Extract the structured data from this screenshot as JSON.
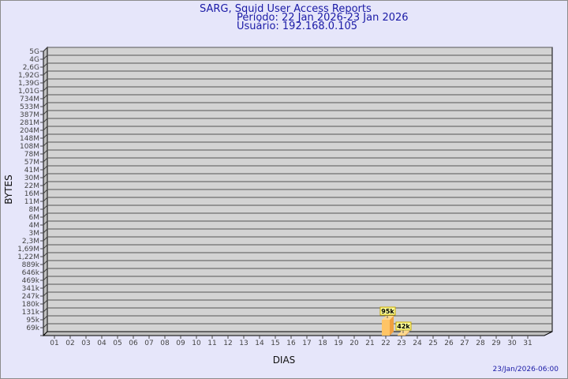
{
  "chart_data": {
    "type": "bar",
    "title": "SARG, Squid User Access Reports",
    "subtitle_period": "Período: 22 Jan 2026-23 Jan 2026",
    "subtitle_user": "Usuário: 192.168.0.105",
    "xlabel": "DIAS",
    "ylabel": "BYTES",
    "footer": "23/Jan/2026-06:00",
    "categories": [
      "01",
      "02",
      "03",
      "04",
      "05",
      "06",
      "07",
      "08",
      "09",
      "10",
      "11",
      "12",
      "13",
      "14",
      "15",
      "16",
      "17",
      "18",
      "19",
      "20",
      "21",
      "22",
      "23",
      "24",
      "25",
      "26",
      "27",
      "28",
      "29",
      "30",
      "31"
    ],
    "y_tick_labels": [
      "69k",
      "95k",
      "131k",
      "180k",
      "247k",
      "341k",
      "469k",
      "646k",
      "889k",
      "1,22M",
      "1,69M",
      "2,3M",
      "3M",
      "4M",
      "6M",
      "8M",
      "11M",
      "16M",
      "22M",
      "30M",
      "41M",
      "57M",
      "78M",
      "108M",
      "148M",
      "204M",
      "281M",
      "387M",
      "533M",
      "734M",
      "1,01G",
      "1,39G",
      "1,92G",
      "2,6G",
      "4G",
      "5G"
    ],
    "y_scale": "log",
    "grid": true,
    "values": [
      {
        "day": "22",
        "value": 95000,
        "label": "95k"
      },
      {
        "day": "23",
        "value": 42000,
        "label": "42k"
      }
    ],
    "colors": {
      "background": "#e6e6fa",
      "plot": "#d3d3d3",
      "bar": "#ffc466",
      "bar_side": "#f0a040",
      "label_bg": "#ffff99",
      "title": "#1a1aa6"
    }
  }
}
